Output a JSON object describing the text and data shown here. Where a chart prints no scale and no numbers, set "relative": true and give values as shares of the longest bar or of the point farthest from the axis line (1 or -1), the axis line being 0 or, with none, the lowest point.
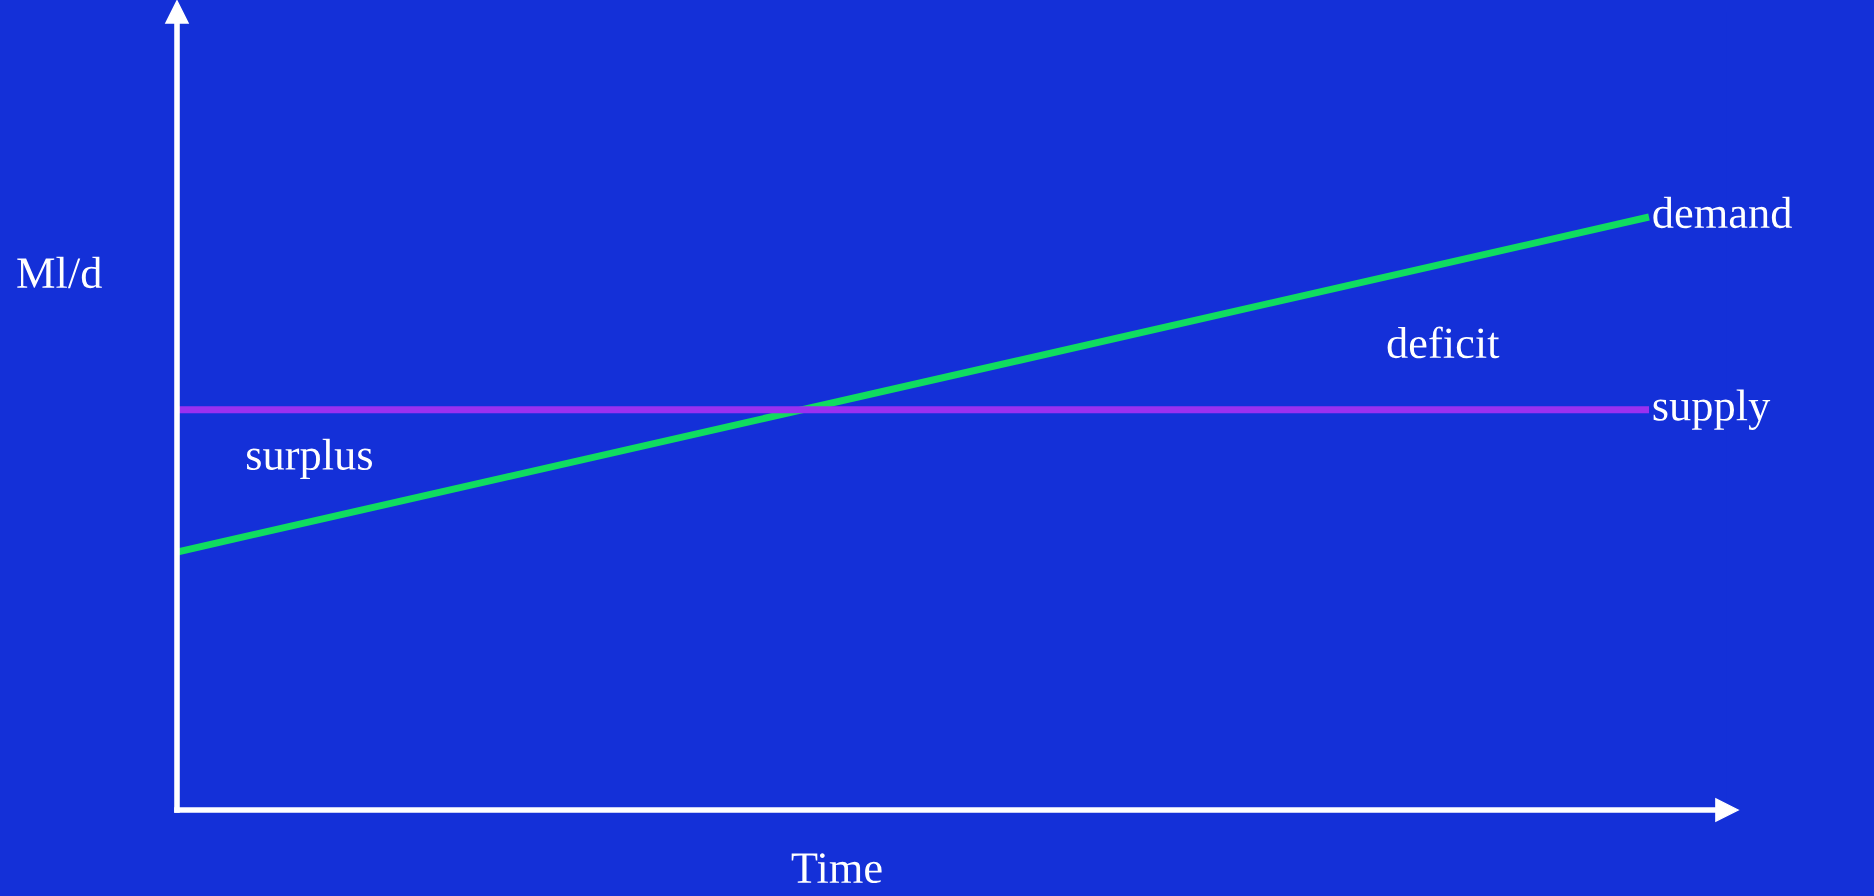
{
  "chart_data": {
    "type": "line",
    "relative": true,
    "xlabel": "Time",
    "ylabel": "Ml/d",
    "categories": [
      null,
      null
    ],
    "series": [
      {
        "name": "demand",
        "color": "#10dc60",
        "values": [
          0.435,
          1
        ]
      },
      {
        "name": "supply",
        "color": "#9b30f0",
        "values": [
          0.675,
          0.675
        ]
      }
    ],
    "annotations": [
      "deficit",
      "surplus"
    ],
    "legend": false,
    "marker": "none",
    "line_style": "solid"
  }
}
